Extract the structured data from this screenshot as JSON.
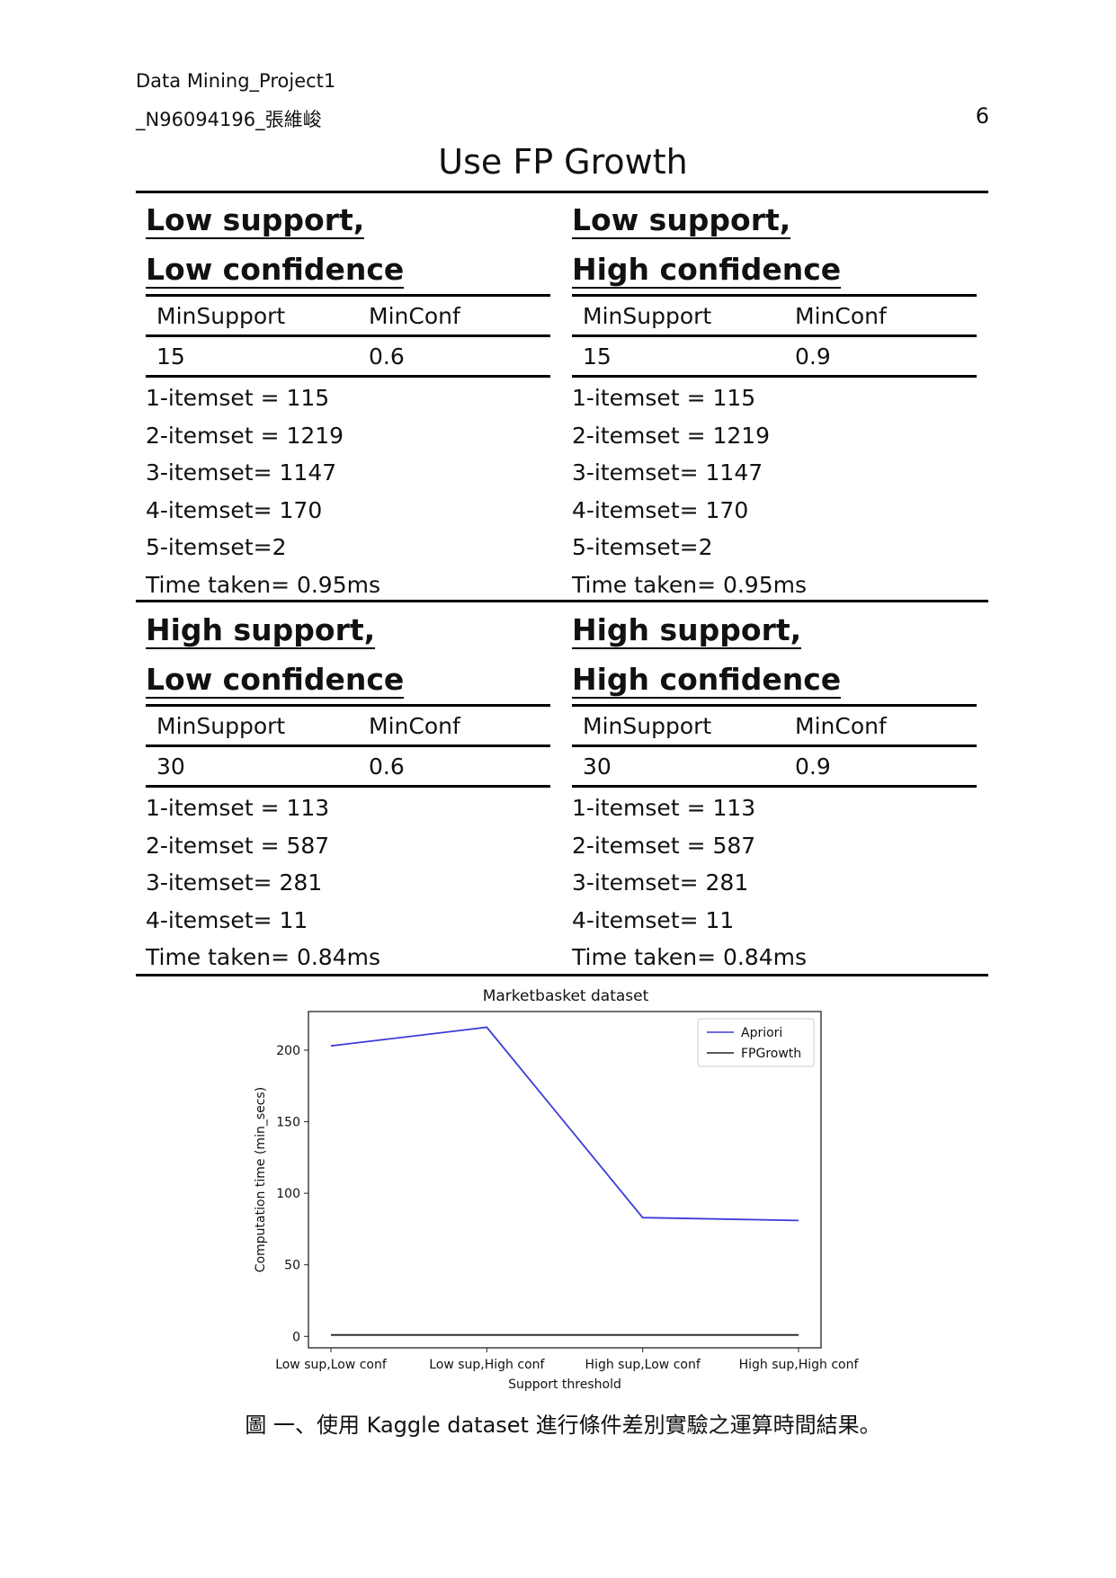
{
  "header": {
    "line1": "Data Mining_Project1",
    "line2": "_N96094196_張維峻",
    "page_number": "6"
  },
  "title": "Use FP Growth",
  "sections": [
    {
      "heading1": "Low support,",
      "heading2": "Low confidence",
      "col1": "MinSupport",
      "col2": "MinConf",
      "val1": "15",
      "val2": "0.6",
      "results": [
        "1-itemset = 115",
        "2-itemset = 1219",
        "3-itemset= 1147",
        "4-itemset= 170",
        "5-itemset=2",
        "Time taken= 0.95ms"
      ]
    },
    {
      "heading1": "Low support,",
      "heading2": "High confidence",
      "col1": "MinSupport",
      "col2": "MinConf",
      "val1": "15",
      "val2": "0.9",
      "results": [
        "1-itemset = 115",
        "2-itemset = 1219",
        "3-itemset= 1147",
        "4-itemset= 170",
        "5-itemset=2",
        "Time taken= 0.95ms"
      ]
    },
    {
      "heading1": "High support,",
      "heading2": "Low confidence",
      "col1": "MinSupport",
      "col2": "MinConf",
      "val1": "30",
      "val2": "0.6",
      "results": [
        "1-itemset = 113",
        "2-itemset = 587",
        "3-itemset= 281",
        "4-itemset= 11",
        "Time taken= 0.84ms"
      ]
    },
    {
      "heading1": "High support,",
      "heading2": "High confidence",
      "col1": "MinSupport",
      "col2": "MinConf",
      "val1": "30",
      "val2": "0.9",
      "results": [
        "1-itemset = 113",
        "2-itemset = 587",
        "3-itemset= 281",
        "4-itemset= 11",
        "Time taken= 0.84ms"
      ]
    }
  ],
  "chart_data": {
    "type": "line",
    "title": "Marketbasket dataset",
    "xlabel": "Support threshold",
    "ylabel": "Computation time (min_secs)",
    "categories": [
      "Low sup,Low conf",
      "Low sup,High conf",
      "High sup,Low conf",
      "High sup,High conf"
    ],
    "ylim": [
      -8,
      227
    ],
    "yticks": [
      0,
      50,
      100,
      150,
      200
    ],
    "legend_position": "top-right",
    "grid": false,
    "series": [
      {
        "name": "Apriori",
        "color": "#3b3bdb",
        "values": [
          203,
          216,
          83,
          81
        ]
      },
      {
        "name": "FPGrowth",
        "color": "#222222",
        "values": [
          1,
          1,
          1,
          1
        ]
      }
    ]
  },
  "caption": "圖 一、使用 Kaggle dataset 進行條件差別實驗之運算時間結果。"
}
